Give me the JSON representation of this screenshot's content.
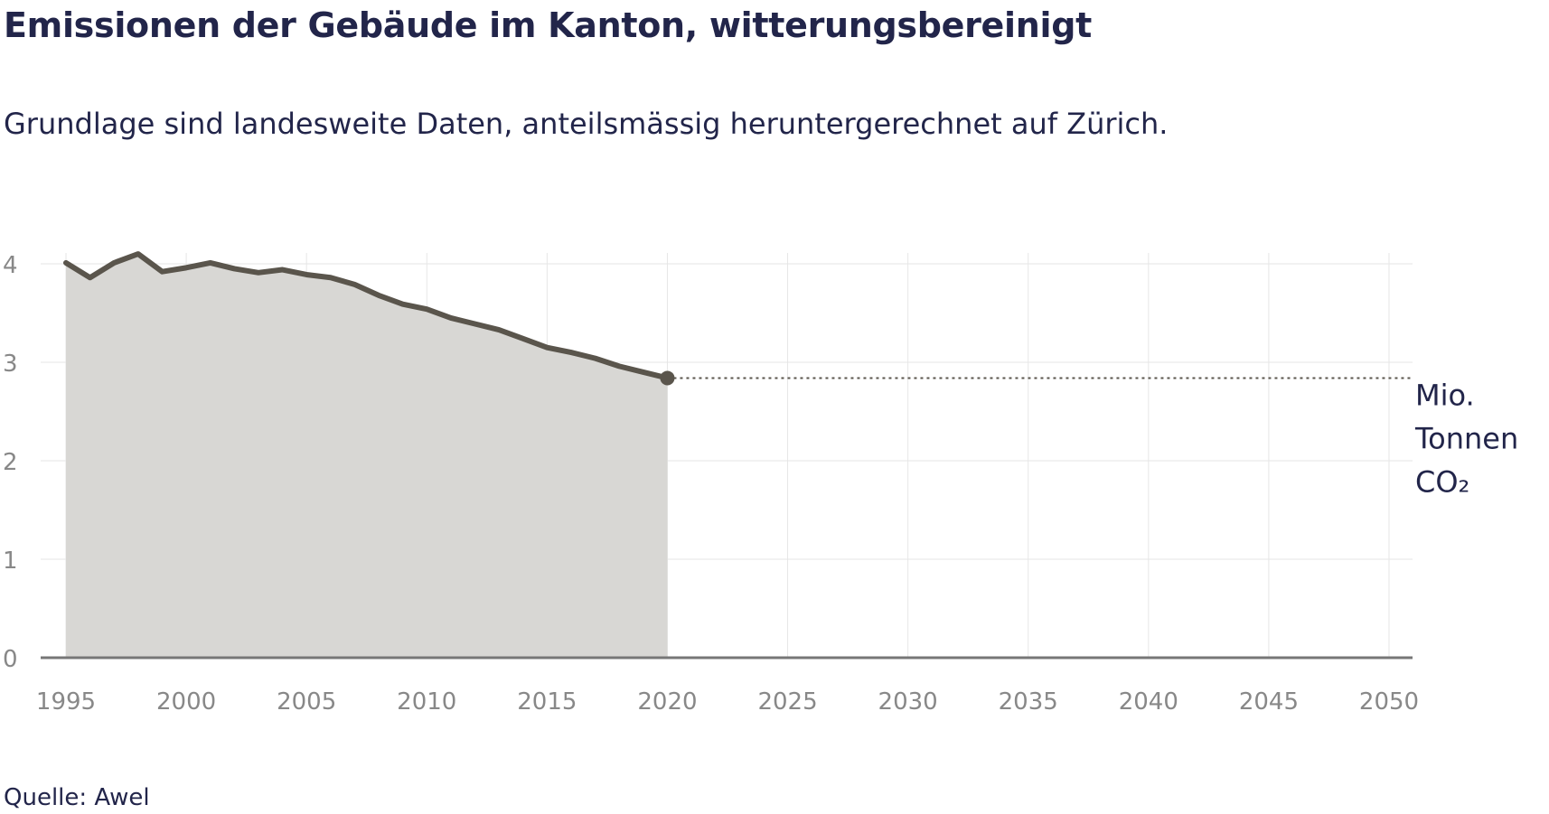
{
  "title": "Emissionen der Gebäude im Kanton, witterungsbereinigt",
  "subtitle": "Grundlage sind landesweite Daten, anteilsmässig heruntergerechnet auf Zürich.",
  "source": "Quelle: Awel",
  "colors": {
    "line": "#5a554c",
    "area": "#d8d7d4",
    "grid": "#e6e6e6",
    "axis": "#777777",
    "tick_text": "#888888",
    "label_text": "#22254a"
  },
  "chart_data": {
    "type": "area",
    "title": "Emissionen der Gebäude im Kanton, witterungsbereinigt",
    "subtitle": "Grundlage sind landesweite Daten, anteilsmässig heruntergerechnet auf Zürich.",
    "xlabel": "",
    "ylabel": "",
    "unit_label": [
      "Mio.",
      "Tonnen",
      "CO₂"
    ],
    "xlim": [
      1995,
      2050
    ],
    "ylim": [
      0,
      4
    ],
    "x_ticks": [
      1995,
      2000,
      2005,
      2010,
      2015,
      2020,
      2025,
      2030,
      2035,
      2040,
      2045,
      2050
    ],
    "y_ticks": [
      0,
      1,
      2,
      3,
      4
    ],
    "grid": true,
    "series": [
      {
        "x": [
          1995,
          1996,
          1997,
          1998,
          1999,
          2000,
          2001,
          2002,
          2003,
          2004,
          2005,
          2006,
          2007,
          2008,
          2009,
          2010,
          2011,
          2012,
          2013,
          2014,
          2015,
          2016,
          2017,
          2018,
          2019,
          2020
        ],
        "values": [
          4.01,
          3.86,
          4.01,
          4.1,
          3.92,
          3.96,
          4.01,
          3.95,
          3.91,
          3.94,
          3.89,
          3.86,
          3.79,
          3.68,
          3.59,
          3.54,
          3.45,
          3.39,
          3.33,
          3.24,
          3.15,
          3.1,
          3.04,
          2.96,
          2.9,
          2.84
        ]
      }
    ],
    "reference_line": {
      "value": 2.84,
      "from": 2020,
      "to": 2051,
      "style": "dotted"
    }
  }
}
